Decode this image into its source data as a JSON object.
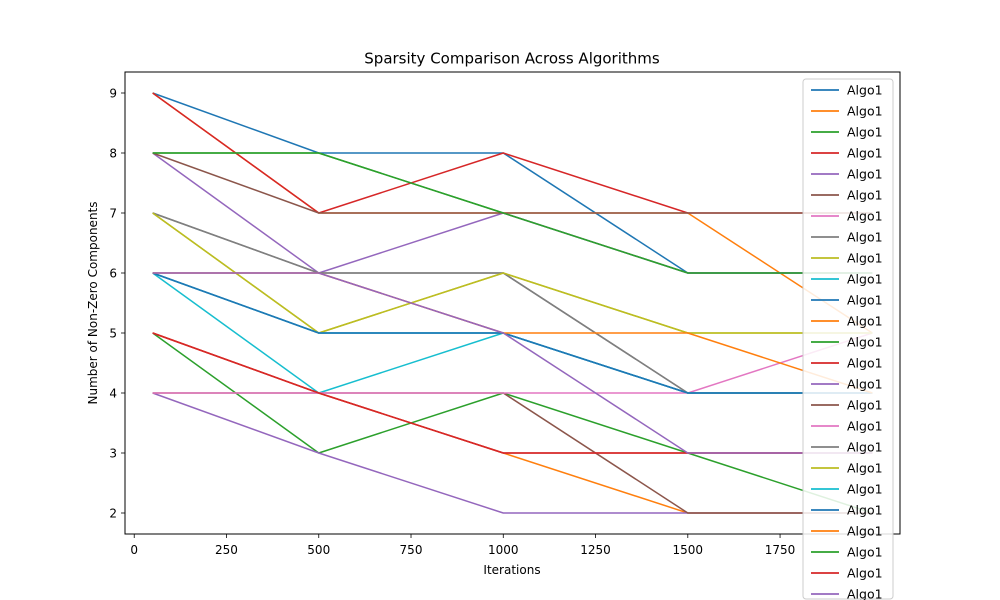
{
  "chart_data": {
    "type": "line",
    "title": "Sparsity Comparison Across Algorithms",
    "xlabel": "Iterations",
    "ylabel": "Number of Non-Zero Components",
    "xlim": [
      -25,
      2075
    ],
    "ylim": [
      1.65,
      9.35
    ],
    "xticks": [
      0,
      250,
      500,
      750,
      1000,
      1250,
      1500,
      1750
    ],
    "yticks": [
      2,
      3,
      4,
      5,
      6,
      7,
      8,
      9
    ],
    "x": [
      50,
      500,
      1000,
      1500,
      2000
    ],
    "grid": false,
    "legend_position": "upper-right",
    "colors": [
      "#1f77b4",
      "#ff7f0e",
      "#2ca02c",
      "#d62728",
      "#9467bd",
      "#8c564b",
      "#e377c2",
      "#7f7f7f",
      "#bcbd22",
      "#17becf"
    ],
    "series": [
      {
        "name": "Algo1",
        "values": [
          9,
          8,
          8,
          6,
          6
        ]
      },
      {
        "name": "Algo1",
        "values": [
          9,
          7,
          7,
          7,
          5
        ]
      },
      {
        "name": "Algo1",
        "values": [
          8,
          8,
          7,
          6,
          6
        ]
      },
      {
        "name": "Algo1",
        "values": [
          9,
          7,
          8,
          7,
          7
        ]
      },
      {
        "name": "Algo1",
        "values": [
          8,
          6,
          7,
          6,
          6
        ]
      },
      {
        "name": "Algo1",
        "values": [
          8,
          7,
          7,
          7,
          7
        ]
      },
      {
        "name": "Algo1",
        "values": [
          6,
          6,
          5,
          4,
          5
        ]
      },
      {
        "name": "Algo1",
        "values": [
          7,
          6,
          6,
          4,
          4
        ]
      },
      {
        "name": "Algo1",
        "values": [
          7,
          5,
          6,
          5,
          5
        ]
      },
      {
        "name": "Algo1",
        "values": [
          6,
          4,
          5,
          4,
          4
        ]
      },
      {
        "name": "Algo1",
        "values": [
          6,
          5,
          5,
          4,
          4
        ]
      },
      {
        "name": "Algo1",
        "values": [
          5,
          4,
          3,
          2,
          2
        ]
      },
      {
        "name": "Algo1",
        "values": [
          5,
          3,
          4,
          3,
          2
        ]
      },
      {
        "name": "Algo1",
        "values": [
          5,
          4,
          3,
          3,
          3
        ]
      },
      {
        "name": "Algo1",
        "values": [
          4,
          3,
          2,
          2,
          2
        ]
      },
      {
        "name": "Algo1",
        "values": [
          4,
          4,
          4,
          2,
          2
        ]
      },
      {
        "name": "Algo1",
        "values": [
          4,
          4,
          4,
          4,
          4
        ]
      },
      {
        "name": "Algo1",
        "values": [
          7,
          6,
          6,
          4,
          4
        ]
      },
      {
        "name": "Algo1",
        "values": [
          7,
          5,
          6,
          5,
          5
        ]
      },
      {
        "name": "Algo1",
        "values": [
          6,
          5,
          5,
          4,
          4
        ]
      },
      {
        "name": "Algo1",
        "values": [
          6,
          5,
          5,
          4,
          4
        ]
      },
      {
        "name": "Algo1",
        "values": [
          6,
          6,
          5,
          5,
          4
        ]
      },
      {
        "name": "Algo1",
        "values": [
          8,
          8,
          7,
          6,
          6
        ]
      },
      {
        "name": "Algo1",
        "values": [
          5,
          4,
          3,
          3,
          3
        ]
      },
      {
        "name": "Algo1",
        "values": [
          6,
          6,
          5,
          3,
          3
        ]
      }
    ]
  }
}
